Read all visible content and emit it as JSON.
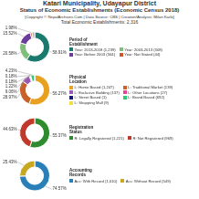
{
  "title": [
    "Katari Municipality, Udayapur District",
    "Status of Economic Establishments (Economic Census 2018)"
  ],
  "subtitle": [
    "[Copyright © NepalArchives.Com | Data Source: CBS | Creation/Analysis: Milan Karki]",
    "Total Economic Establishments: 2,316"
  ],
  "chart_data": [
    {
      "type": "pie",
      "title": "Period of\nEstablishment",
      "categories": [
        "Year: 2013-2018 (1,239)",
        "Year: 2003-2013 (308)",
        "Year: Before 2003 (344)",
        "Year: Not Stated (44)",
        null
      ],
      "values": [
        58.91,
        20.58,
        15.52,
        1.98,
        3.01
      ],
      "value_labels": [
        "58.91%",
        "20.58%",
        "15.52%",
        "1.98%",
        null
      ],
      "colors": [
        "#1a7a6e",
        "#7fbf7b",
        "#6a3d9a",
        "#c85a2a",
        "#b0b0b0"
      ],
      "data_labels": true
    },
    {
      "type": "pie",
      "title": "Physical\nLocation",
      "categories": [
        "L: Home Based (1,247)",
        "L: Traditional Market (139)",
        "L: Exclusive Building (137)",
        "L: Other Locations (27)",
        "L: Street Based (1)",
        null,
        "L: Brand Based (692)",
        "L: Shopping Mall (9)"
      ],
      "values": [
        56.27,
        28.97,
        9.06,
        1.22,
        0.18,
        0.18,
        4.23,
        0.06
      ],
      "value_labels": [
        "56.27%",
        "28.97%",
        "9.06%",
        "1.22%",
        "0.18%",
        "0.18%",
        "4.23%",
        null
      ],
      "colors": [
        "#e8a020",
        "#c8622a",
        "#9b59b6",
        "#e84393",
        "#191970",
        "#2a2a2a",
        "#2ecc71",
        "#f0e040"
      ],
      "data_labels": true
    },
    {
      "type": "pie",
      "title": "Registration\nStatus",
      "categories": [
        "R: Legally Registered (1,221)",
        "R: Not Registered (969)"
      ],
      "values": [
        55.37,
        44.63
      ],
      "value_labels": [
        "55.37%",
        "44.63%"
      ],
      "colors": [
        "#2e8b2e",
        "#c0392b"
      ],
      "data_labels": true
    },
    {
      "type": "pie",
      "title": "Accounting\nRecords",
      "categories": [
        "Acc: With Record (1,610)",
        "Acc: Without Record (549)"
      ],
      "values": [
        74.57,
        25.43
      ],
      "value_labels": [
        "74.57%",
        "25.43%"
      ],
      "colors": [
        "#2980b9",
        "#c8a820"
      ],
      "data_labels": true
    }
  ]
}
